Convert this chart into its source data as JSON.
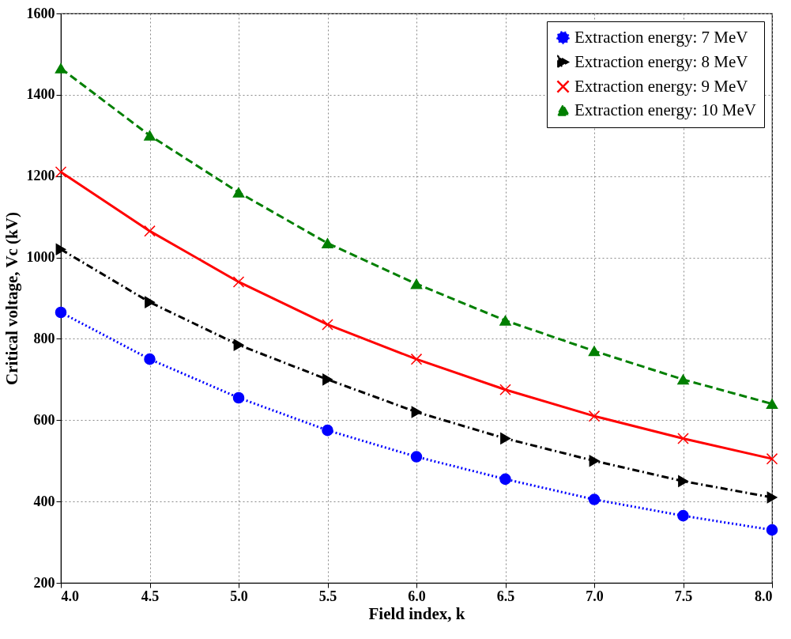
{
  "chart_data": {
    "type": "line",
    "xlabel": "Field index, k",
    "ylabel": "Critical voltage, Vc (kV)",
    "x": [
      4.0,
      4.5,
      5.0,
      5.5,
      6.0,
      6.5,
      7.0,
      7.5,
      8.0
    ],
    "series": [
      {
        "name": "Extraction energy: 7 MeV",
        "color": "#0000ff",
        "marker": "circle",
        "line_style": "dotted",
        "values": [
          865,
          750,
          655,
          575,
          510,
          455,
          405,
          365,
          330
        ]
      },
      {
        "name": "Extraction energy: 8 MeV",
        "color": "#000000",
        "marker": "triangle-right",
        "line_style": "dashdot",
        "values": [
          1020,
          890,
          785,
          700,
          620,
          555,
          500,
          450,
          410
        ]
      },
      {
        "name": "Extraction energy: 9 MeV",
        "color": "#ff0000",
        "marker": "x",
        "line_style": "solid",
        "values": [
          1210,
          1065,
          940,
          835,
          750,
          675,
          610,
          555,
          505
        ]
      },
      {
        "name": "Extraction energy: 10 MeV",
        "color": "#007f00",
        "marker": "triangle",
        "line_style": "dashed",
        "values": [
          1465,
          1300,
          1160,
          1035,
          935,
          845,
          770,
          700,
          640
        ]
      }
    ],
    "xlim": [
      4.0,
      8.0
    ],
    "xticks": [
      {
        "value": 4,
        "label": "4.0"
      },
      {
        "value": 4.5,
        "label": "4.5"
      },
      {
        "value": 5,
        "label": "5.0"
      },
      {
        "value": 5.5,
        "label": "5.5"
      },
      {
        "value": 6,
        "label": "6.0"
      },
      {
        "value": 6.5,
        "label": "6.5"
      },
      {
        "value": 7,
        "label": "7.0"
      },
      {
        "value": 7.5,
        "label": "7.5"
      },
      {
        "value": 8,
        "label": "8.0"
      }
    ],
    "ylim": [
      200,
      1600
    ],
    "yticks": [
      200,
      400,
      600,
      800,
      1000,
      1200,
      1400,
      1600
    ],
    "grid": true,
    "legend": "top right"
  }
}
